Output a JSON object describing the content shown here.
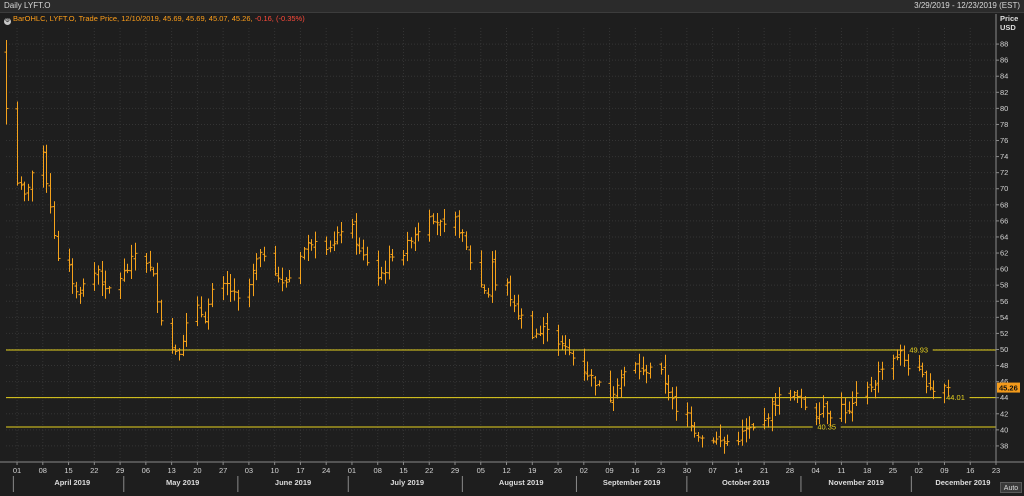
{
  "header": {
    "title": "Daily LYFT.O",
    "date_range": "3/29/2019 - 12/23/2019 (EST)"
  },
  "legend": {
    "icon": "settings-icon",
    "text": "BarOHLC, LYFT.O, Trade Price, 12/10/2019, 45.69, 45.69, 45.07, 45.26,",
    "change": "-0.16, (-0.35%)"
  },
  "axis": {
    "price_label": "Price",
    "currency_label": "USD",
    "last_price_label": "45.26",
    "auto_label": "Auto"
  },
  "colors": {
    "background": "#1e1e1e",
    "bars": "#f5a21b",
    "horizontal_lines": "#e6d21e",
    "last_price_tag": "#f39a1b",
    "grid": "#343434"
  },
  "chart_data": {
    "type": "bar",
    "style": "ohlc",
    "ylim": [
      36,
      90
    ],
    "yticks": [
      38,
      40,
      42,
      44,
      46,
      48,
      50,
      52,
      54,
      56,
      58,
      60,
      62,
      64,
      66,
      68,
      70,
      72,
      74,
      76,
      78,
      80,
      82,
      84,
      86,
      88
    ],
    "xlim": [
      "2019-03-29",
      "2019-12-23"
    ],
    "day_ticks": [
      {
        "date": "2019-04-01",
        "label": "01"
      },
      {
        "date": "2019-04-08",
        "label": "08"
      },
      {
        "date": "2019-04-15",
        "label": "15"
      },
      {
        "date": "2019-04-22",
        "label": "22"
      },
      {
        "date": "2019-04-29",
        "label": "29"
      },
      {
        "date": "2019-05-06",
        "label": "06"
      },
      {
        "date": "2019-05-13",
        "label": "13"
      },
      {
        "date": "2019-05-20",
        "label": "20"
      },
      {
        "date": "2019-05-27",
        "label": "27"
      },
      {
        "date": "2019-06-03",
        "label": "03"
      },
      {
        "date": "2019-06-10",
        "label": "10"
      },
      {
        "date": "2019-06-17",
        "label": "17"
      },
      {
        "date": "2019-06-24",
        "label": "24"
      },
      {
        "date": "2019-07-01",
        "label": "01"
      },
      {
        "date": "2019-07-08",
        "label": "08"
      },
      {
        "date": "2019-07-15",
        "label": "15"
      },
      {
        "date": "2019-07-22",
        "label": "22"
      },
      {
        "date": "2019-07-29",
        "label": "29"
      },
      {
        "date": "2019-08-05",
        "label": "05"
      },
      {
        "date": "2019-08-12",
        "label": "12"
      },
      {
        "date": "2019-08-19",
        "label": "19"
      },
      {
        "date": "2019-08-26",
        "label": "26"
      },
      {
        "date": "2019-09-02",
        "label": "02"
      },
      {
        "date": "2019-09-09",
        "label": "09"
      },
      {
        "date": "2019-09-16",
        "label": "16"
      },
      {
        "date": "2019-09-23",
        "label": "23"
      },
      {
        "date": "2019-09-30",
        "label": "30"
      },
      {
        "date": "2019-10-07",
        "label": "07"
      },
      {
        "date": "2019-10-14",
        "label": "14"
      },
      {
        "date": "2019-10-21",
        "label": "21"
      },
      {
        "date": "2019-10-28",
        "label": "28"
      },
      {
        "date": "2019-11-04",
        "label": "04"
      },
      {
        "date": "2019-11-11",
        "label": "11"
      },
      {
        "date": "2019-11-18",
        "label": "18"
      },
      {
        "date": "2019-11-25",
        "label": "25"
      },
      {
        "date": "2019-12-02",
        "label": "02"
      },
      {
        "date": "2019-12-09",
        "label": "09"
      },
      {
        "date": "2019-12-16",
        "label": "16"
      },
      {
        "date": "2019-12-23",
        "label": "23"
      }
    ],
    "month_labels": [
      {
        "date": "2019-04-16",
        "label": "April 2019"
      },
      {
        "date": "2019-05-16",
        "label": "May 2019"
      },
      {
        "date": "2019-06-15",
        "label": "June 2019"
      },
      {
        "date": "2019-07-16",
        "label": "July 2019"
      },
      {
        "date": "2019-08-16",
        "label": "August 2019"
      },
      {
        "date": "2019-09-15",
        "label": "September 2019"
      },
      {
        "date": "2019-10-16",
        "label": "October 2019"
      },
      {
        "date": "2019-11-15",
        "label": "November 2019"
      },
      {
        "date": "2019-12-14",
        "label": "December 2019"
      }
    ],
    "month_separators": [
      "2019-03-31",
      "2019-04-30",
      "2019-05-31",
      "2019-06-30",
      "2019-07-31",
      "2019-08-31",
      "2019-09-30",
      "2019-10-31",
      "2019-11-30"
    ],
    "horizontal_lines": [
      {
        "value": 49.93,
        "label": "49.93",
        "label_date": "2019-12-02"
      },
      {
        "value": 44.01,
        "label": "44.01",
        "label_date": "2019-12-12"
      },
      {
        "value": 40.35,
        "label": "40.35",
        "label_date": "2019-11-07"
      }
    ],
    "last_price": 45.26,
    "keypoints": [
      [
        "2019-03-29",
        80
      ],
      [
        "2019-04-01",
        71
      ],
      [
        "2019-04-03",
        69
      ],
      [
        "2019-04-05",
        72
      ],
      [
        "2019-04-08",
        74
      ],
      [
        "2019-04-10",
        68
      ],
      [
        "2019-04-12",
        61
      ],
      [
        "2019-04-15",
        60
      ],
      [
        "2019-04-17",
        57
      ],
      [
        "2019-04-19",
        58
      ],
      [
        "2019-04-23",
        60
      ],
      [
        "2019-04-25",
        57
      ],
      [
        "2019-04-29",
        59
      ],
      [
        "2019-05-01",
        60
      ],
      [
        "2019-05-03",
        62
      ],
      [
        "2019-05-06",
        61
      ],
      [
        "2019-05-08",
        59
      ],
      [
        "2019-05-10",
        54
      ],
      [
        "2019-05-13",
        50
      ],
      [
        "2019-05-15",
        50
      ],
      [
        "2019-05-17",
        53
      ],
      [
        "2019-05-20",
        55
      ],
      [
        "2019-05-22",
        54
      ],
      [
        "2019-05-24",
        57
      ],
      [
        "2019-05-28",
        58
      ],
      [
        "2019-05-31",
        56
      ],
      [
        "2019-06-03",
        58
      ],
      [
        "2019-06-05",
        61
      ],
      [
        "2019-06-07",
        62
      ],
      [
        "2019-06-10",
        60
      ],
      [
        "2019-06-12",
        58
      ],
      [
        "2019-06-14",
        59
      ],
      [
        "2019-06-17",
        62
      ],
      [
        "2019-06-19",
        63
      ],
      [
        "2019-06-21",
        64
      ],
      [
        "2019-06-24",
        63
      ],
      [
        "2019-06-26",
        63
      ],
      [
        "2019-06-28",
        65
      ],
      [
        "2019-07-01",
        65
      ],
      [
        "2019-07-03",
        62
      ],
      [
        "2019-07-05",
        61
      ],
      [
        "2019-07-08",
        59
      ],
      [
        "2019-07-10",
        60
      ],
      [
        "2019-07-12",
        62
      ],
      [
        "2019-07-15",
        62
      ],
      [
        "2019-07-17",
        64
      ],
      [
        "2019-07-19",
        65
      ],
      [
        "2019-07-22",
        67
      ],
      [
        "2019-07-24",
        66
      ],
      [
        "2019-07-26",
        65
      ],
      [
        "2019-07-29",
        66
      ],
      [
        "2019-07-31",
        64
      ],
      [
        "2019-08-02",
        61
      ],
      [
        "2019-08-05",
        58
      ],
      [
        "2019-08-07",
        57
      ],
      [
        "2019-08-08",
        61
      ],
      [
        "2019-08-09",
        58
      ],
      [
        "2019-08-12",
        58
      ],
      [
        "2019-08-14",
        55
      ],
      [
        "2019-08-16",
        54
      ],
      [
        "2019-08-19",
        52
      ],
      [
        "2019-08-21",
        52
      ],
      [
        "2019-08-23",
        53
      ],
      [
        "2019-08-26",
        51
      ],
      [
        "2019-08-28",
        50
      ],
      [
        "2019-08-30",
        49
      ],
      [
        "2019-09-03",
        47
      ],
      [
        "2019-09-05",
        46
      ],
      [
        "2019-09-09",
        44
      ],
      [
        "2019-09-11",
        46
      ],
      [
        "2019-09-13",
        47
      ],
      [
        "2019-09-16",
        48
      ],
      [
        "2019-09-18",
        47
      ],
      [
        "2019-09-20",
        48
      ],
      [
        "2019-09-23",
        47
      ],
      [
        "2019-09-25",
        45
      ],
      [
        "2019-09-27",
        42
      ],
      [
        "2019-09-30",
        42
      ],
      [
        "2019-10-02",
        40
      ],
      [
        "2019-10-04",
        39
      ],
      [
        "2019-10-07",
        39
      ],
      [
        "2019-10-09",
        38.5
      ],
      [
        "2019-10-11",
        38.5
      ],
      [
        "2019-10-14",
        39
      ],
      [
        "2019-10-16",
        40
      ],
      [
        "2019-10-18",
        40
      ],
      [
        "2019-10-21",
        41
      ],
      [
        "2019-10-23",
        43
      ],
      [
        "2019-10-25",
        44
      ],
      [
        "2019-10-28",
        44.5
      ],
      [
        "2019-10-30",
        44
      ],
      [
        "2019-11-01",
        43
      ],
      [
        "2019-11-04",
        42
      ],
      [
        "2019-11-06",
        43
      ],
      [
        "2019-11-08",
        42
      ],
      [
        "2019-11-11",
        43
      ],
      [
        "2019-11-13",
        42
      ],
      [
        "2019-11-15",
        44
      ],
      [
        "2019-11-18",
        45
      ],
      [
        "2019-11-20",
        46
      ],
      [
        "2019-11-22",
        48
      ],
      [
        "2019-11-25",
        49
      ],
      [
        "2019-11-27",
        49.5
      ],
      [
        "2019-11-29",
        48
      ],
      [
        "2019-12-02",
        47
      ],
      [
        "2019-12-04",
        46
      ],
      [
        "2019-12-06",
        45
      ],
      [
        "2019-12-09",
        45.5
      ],
      [
        "2019-12-10",
        45.26
      ]
    ]
  }
}
